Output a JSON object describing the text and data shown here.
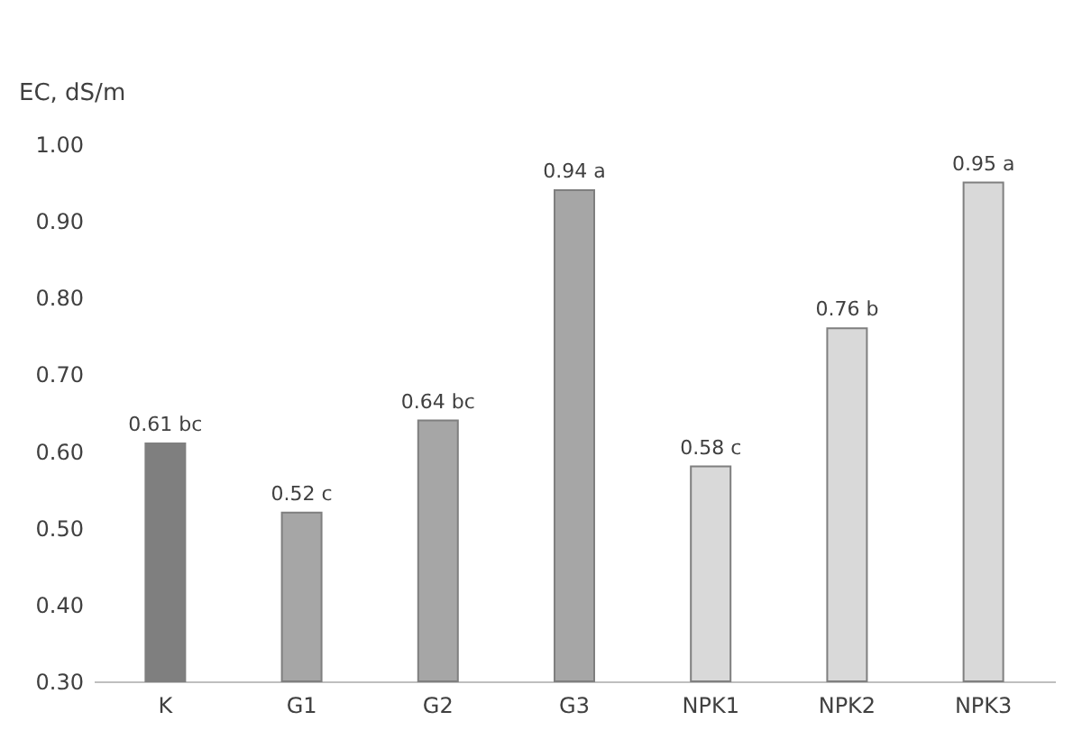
{
  "chart_data": {
    "type": "bar",
    "ylabel": "EC, dS/m",
    "categories": [
      "K",
      "G1",
      "G2",
      "G3",
      "NPK1",
      "NPK2",
      "NPK3"
    ],
    "values": [
      0.61,
      0.52,
      0.64,
      0.94,
      0.58,
      0.76,
      0.95
    ],
    "colors": [
      "#7f7f7f",
      "#a6a6a6",
      "#a6a6a6",
      "#a6a6a6",
      "#d9d9d9",
      "#d9d9d9",
      "#d9d9d9"
    ],
    "value_labels": [
      "0.61 bc",
      "0.52 c",
      "0.64 bc",
      "0.94 a",
      "0.58 c",
      "0.76 b",
      "0.95 a"
    ],
    "ylim": [
      0.3,
      1.0
    ],
    "yticks": [
      {
        "value": 0.3,
        "label": "0.30"
      },
      {
        "value": 0.4,
        "label": "0.40"
      },
      {
        "value": 0.5,
        "label": "0.50"
      },
      {
        "value": 0.6,
        "label": "0.60"
      },
      {
        "value": 0.7,
        "label": "0.70"
      },
      {
        "value": 0.8,
        "label": "0.80"
      },
      {
        "value": 0.9,
        "label": "0.90"
      },
      {
        "value": 1.0,
        "label": "1.00"
      }
    ],
    "grid": false
  }
}
